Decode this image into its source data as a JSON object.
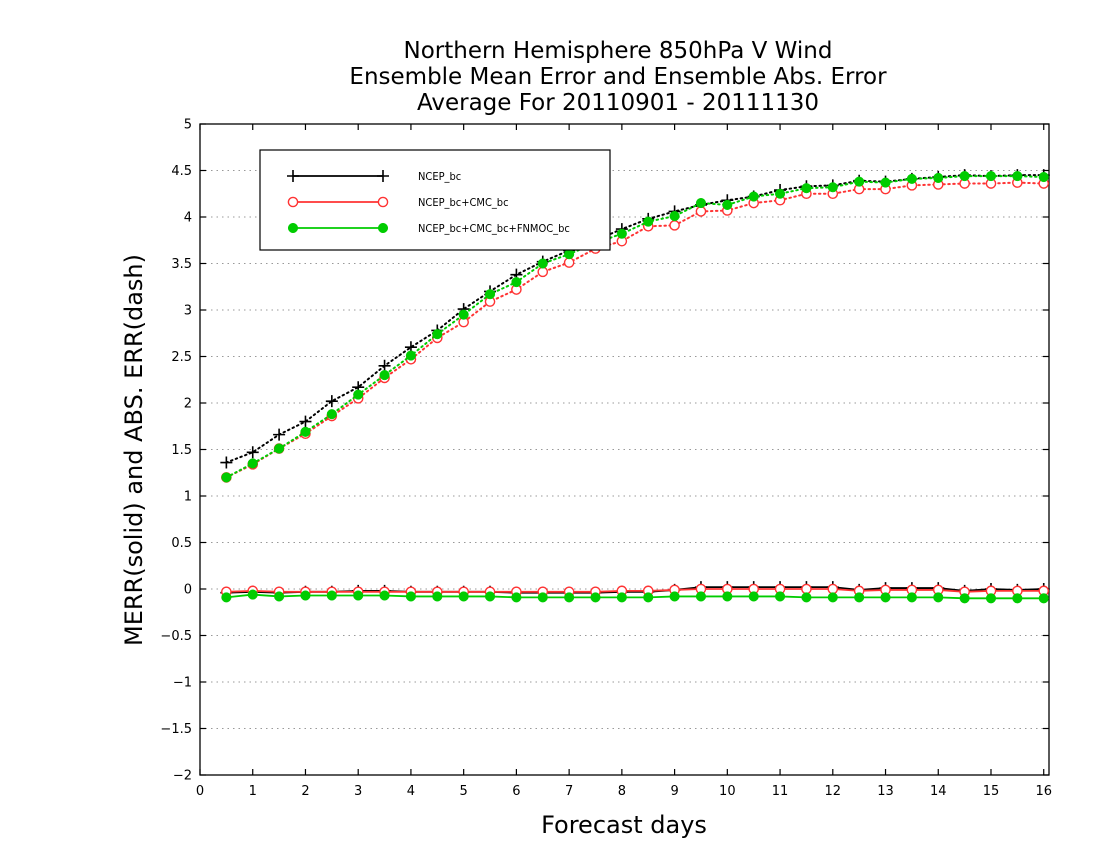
{
  "chart_data": {
    "type": "line",
    "title": [
      "Northern Hemisphere 850hPa V Wind",
      "Ensemble Mean Error and Ensemble Abs. Error",
      "Average For 20110901 - 20111130"
    ],
    "xlabel": "Forecast days",
    "ylabel": "MERR(solid) and ABS. ERR(dash)",
    "xlim": [
      0,
      16.1
    ],
    "ylim": [
      -2,
      5
    ],
    "xticks": [
      "0",
      "1",
      "2",
      "3",
      "4",
      "5",
      "6",
      "7",
      "8",
      "9",
      "10",
      "11",
      "12",
      "13",
      "14",
      "15",
      "16"
    ],
    "yticks": [
      "5",
      "4.5",
      "4",
      "3.5",
      "3",
      "2.5",
      "2",
      "1.5",
      "1",
      "0.5",
      "0",
      "−0.5",
      "−1",
      "−1.5",
      "−2"
    ],
    "grid": true,
    "legend_position": "top-left",
    "x": [
      0.5,
      1,
      1.5,
      2,
      2.5,
      3,
      3.5,
      4,
      4.5,
      5,
      5.5,
      6,
      6.5,
      7,
      7.5,
      8,
      8.5,
      9,
      9.5,
      10,
      10.5,
      11,
      11.5,
      12,
      12.5,
      13,
      13.5,
      14,
      14.5,
      15,
      15.5,
      16
    ],
    "series": [
      {
        "name": "NCEP_bc",
        "color": "#000000",
        "marker": "plus",
        "mean_error": [
          -0.04,
          -0.03,
          -0.04,
          -0.03,
          -0.03,
          -0.02,
          -0.02,
          -0.03,
          -0.03,
          -0.03,
          -0.03,
          -0.04,
          -0.04,
          -0.04,
          -0.04,
          -0.03,
          -0.03,
          -0.01,
          0.02,
          0.02,
          0.02,
          0.02,
          0.02,
          0.02,
          -0.01,
          0.01,
          0.01,
          0.01,
          -0.02,
          0.0,
          -0.01,
          0.0
        ],
        "abs_error": [
          1.36,
          1.47,
          1.66,
          1.8,
          2.02,
          2.17,
          2.4,
          2.6,
          2.78,
          3.01,
          3.2,
          3.38,
          3.52,
          3.64,
          3.75,
          3.87,
          3.98,
          4.06,
          4.13,
          4.18,
          4.22,
          4.29,
          4.33,
          4.34,
          4.39,
          4.38,
          4.41,
          4.43,
          4.45,
          4.44,
          4.45,
          4.45
        ]
      },
      {
        "name": "NCEP_bc+CMC_bc",
        "color": "#ff3333",
        "marker": "open-circle",
        "mean_error": [
          -0.03,
          -0.02,
          -0.03,
          -0.03,
          -0.03,
          -0.03,
          -0.03,
          -0.03,
          -0.03,
          -0.03,
          -0.03,
          -0.03,
          -0.03,
          -0.03,
          -0.03,
          -0.02,
          -0.02,
          -0.01,
          0.0,
          0.0,
          0.0,
          0.0,
          0.0,
          0.0,
          -0.02,
          -0.01,
          -0.01,
          -0.01,
          -0.03,
          -0.02,
          -0.02,
          -0.02
        ],
        "abs_error": [
          1.2,
          1.34,
          1.51,
          1.67,
          1.86,
          2.05,
          2.27,
          2.47,
          2.7,
          2.87,
          3.09,
          3.22,
          3.41,
          3.51,
          3.66,
          3.74,
          3.9,
          3.91,
          4.06,
          4.07,
          4.15,
          4.18,
          4.25,
          4.25,
          4.3,
          4.3,
          4.34,
          4.35,
          4.36,
          4.36,
          4.37,
          4.36
        ]
      },
      {
        "name": "NCEP_bc+CMC_bc+FNMOC_bc",
        "color": "#00cc00",
        "marker": "filled-circle",
        "mean_error": [
          -0.09,
          -0.06,
          -0.08,
          -0.07,
          -0.07,
          -0.07,
          -0.07,
          -0.08,
          -0.08,
          -0.08,
          -0.08,
          -0.09,
          -0.09,
          -0.09,
          -0.09,
          -0.09,
          -0.09,
          -0.08,
          -0.08,
          -0.08,
          -0.08,
          -0.08,
          -0.09,
          -0.09,
          -0.09,
          -0.09,
          -0.09,
          -0.09,
          -0.1,
          -0.1,
          -0.1,
          -0.1
        ],
        "abs_error": [
          1.2,
          1.35,
          1.51,
          1.69,
          1.88,
          2.09,
          2.3,
          2.51,
          2.74,
          2.95,
          3.17,
          3.3,
          3.5,
          3.6,
          3.72,
          3.82,
          3.95,
          4.01,
          4.15,
          4.13,
          4.22,
          4.25,
          4.31,
          4.32,
          4.38,
          4.37,
          4.41,
          4.42,
          4.44,
          4.44,
          4.44,
          4.43
        ]
      }
    ]
  }
}
